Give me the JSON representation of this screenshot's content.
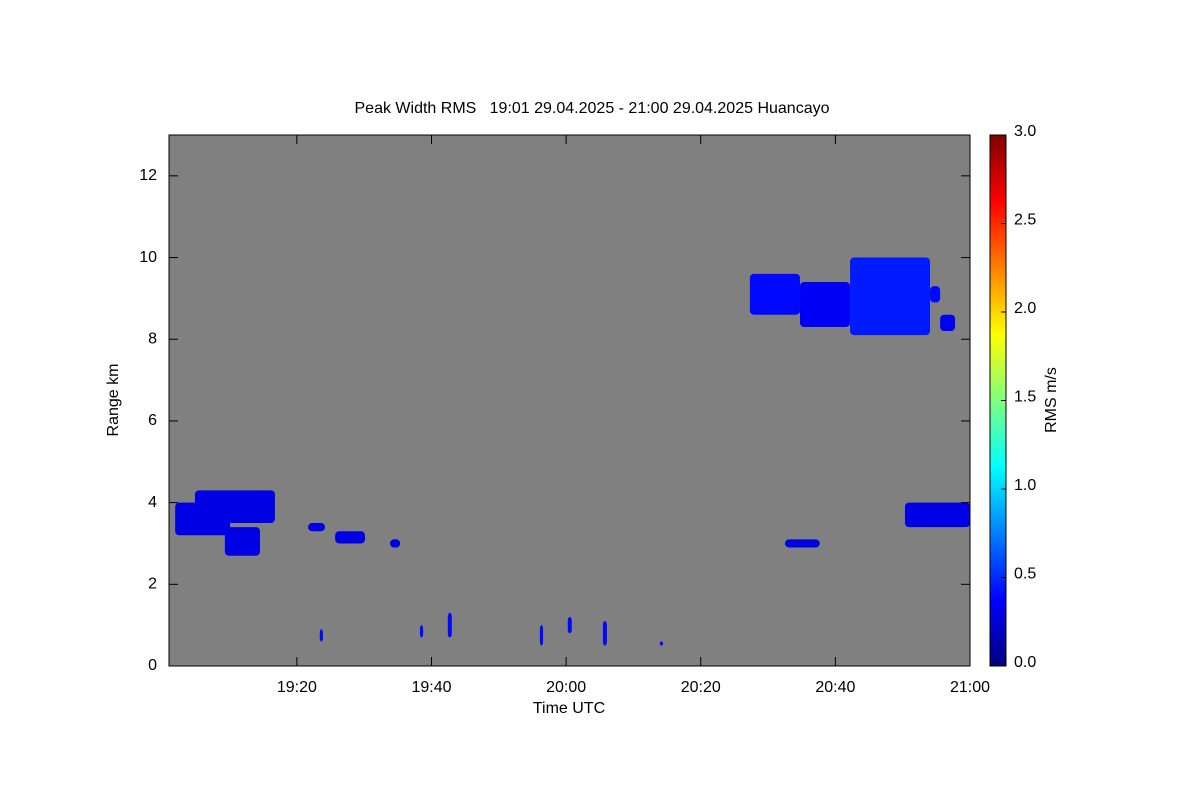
{
  "chart_data": {
    "type": "heatmap",
    "title": "Peak Width RMS   19:01 29.04.2025 - 21:00 29.04.2025 Huancayo",
    "x_label": "Time UTC",
    "y_label": "Range km",
    "colorbar_label": "RMS m/s",
    "background": "#808080",
    "xlim": [
      19.0167,
      21.0
    ],
    "xticks": [
      {
        "value": 19.3333,
        "label": "19:20"
      },
      {
        "value": 19.6667,
        "label": "19:40"
      },
      {
        "value": 20.0,
        "label": "20:00"
      },
      {
        "value": 20.3333,
        "label": "20:20"
      },
      {
        "value": 20.6667,
        "label": "20:40"
      },
      {
        "value": 21.0,
        "label": "21:00"
      }
    ],
    "ylim": [
      0,
      13
    ],
    "yticks": [
      0,
      2,
      4,
      6,
      8,
      10,
      12
    ],
    "clim": [
      0,
      3.0
    ],
    "cticks": [
      {
        "value": 0,
        "label": "0.0"
      },
      {
        "value": 0.5,
        "label": "0.5"
      },
      {
        "value": 1,
        "label": "1.0"
      },
      {
        "value": 1.5,
        "label": "1.5"
      },
      {
        "value": 2,
        "label": "2.0"
      },
      {
        "value": 2.5,
        "label": "2.5"
      },
      {
        "value": 3,
        "label": "3.0"
      }
    ],
    "cells": [
      {
        "x": [
          20.455,
          20.579
        ],
        "y": [
          8.6,
          9.6
        ],
        "value": 0.4
      },
      {
        "x": [
          20.579,
          20.703
        ],
        "y": [
          8.3,
          9.4
        ],
        "value": 0.35
      },
      {
        "x": [
          20.703,
          20.901
        ],
        "y": [
          8.1,
          10.0
        ],
        "value": 0.45
      },
      {
        "x": [
          20.901,
          20.926
        ],
        "y": [
          8.9,
          9.3
        ],
        "value": 0.4
      },
      {
        "x": [
          20.926,
          20.963
        ],
        "y": [
          8.2,
          8.6
        ],
        "value": 0.35
      },
      {
        "x": [
          19.032,
          19.168
        ],
        "y": [
          3.2,
          4.0
        ],
        "value": 0.3
      },
      {
        "x": [
          19.081,
          19.279
        ],
        "y": [
          3.5,
          4.3
        ],
        "value": 0.3
      },
      {
        "x": [
          19.155,
          19.242
        ],
        "y": [
          2.7,
          3.4
        ],
        "value": 0.3
      },
      {
        "x": [
          19.361,
          19.403
        ],
        "y": [
          3.3,
          3.5
        ],
        "value": 0.3
      },
      {
        "x": [
          19.428,
          19.502
        ],
        "y": [
          3.0,
          3.3
        ],
        "value": 0.3
      },
      {
        "x": [
          19.564,
          19.589
        ],
        "y": [
          2.9,
          3.1
        ],
        "value": 0.3
      },
      {
        "x": [
          20.839,
          21.0
        ],
        "y": [
          3.4,
          4.0
        ],
        "value": 0.3
      },
      {
        "x": [
          20.542,
          20.628
        ],
        "y": [
          2.9,
          3.1
        ],
        "value": 0.3
      },
      {
        "x": [
          19.39,
          19.398
        ],
        "y": [
          0.6,
          0.9
        ],
        "value": 0.4
      },
      {
        "x": [
          19.638,
          19.646
        ],
        "y": [
          0.7,
          1.0
        ],
        "value": 0.4
      },
      {
        "x": [
          19.707,
          19.717
        ],
        "y": [
          0.7,
          1.3
        ],
        "value": 0.4
      },
      {
        "x": [
          19.935,
          19.943
        ],
        "y": [
          0.5,
          1.0
        ],
        "value": 0.4
      },
      {
        "x": [
          20.004,
          20.014
        ],
        "y": [
          0.8,
          1.2
        ],
        "value": 0.4
      },
      {
        "x": [
          20.091,
          20.101
        ],
        "y": [
          0.5,
          1.1
        ],
        "value": 0.4
      },
      {
        "x": [
          20.232,
          20.24
        ],
        "y": [
          0.5,
          0.6
        ],
        "value": 0.4
      }
    ]
  }
}
